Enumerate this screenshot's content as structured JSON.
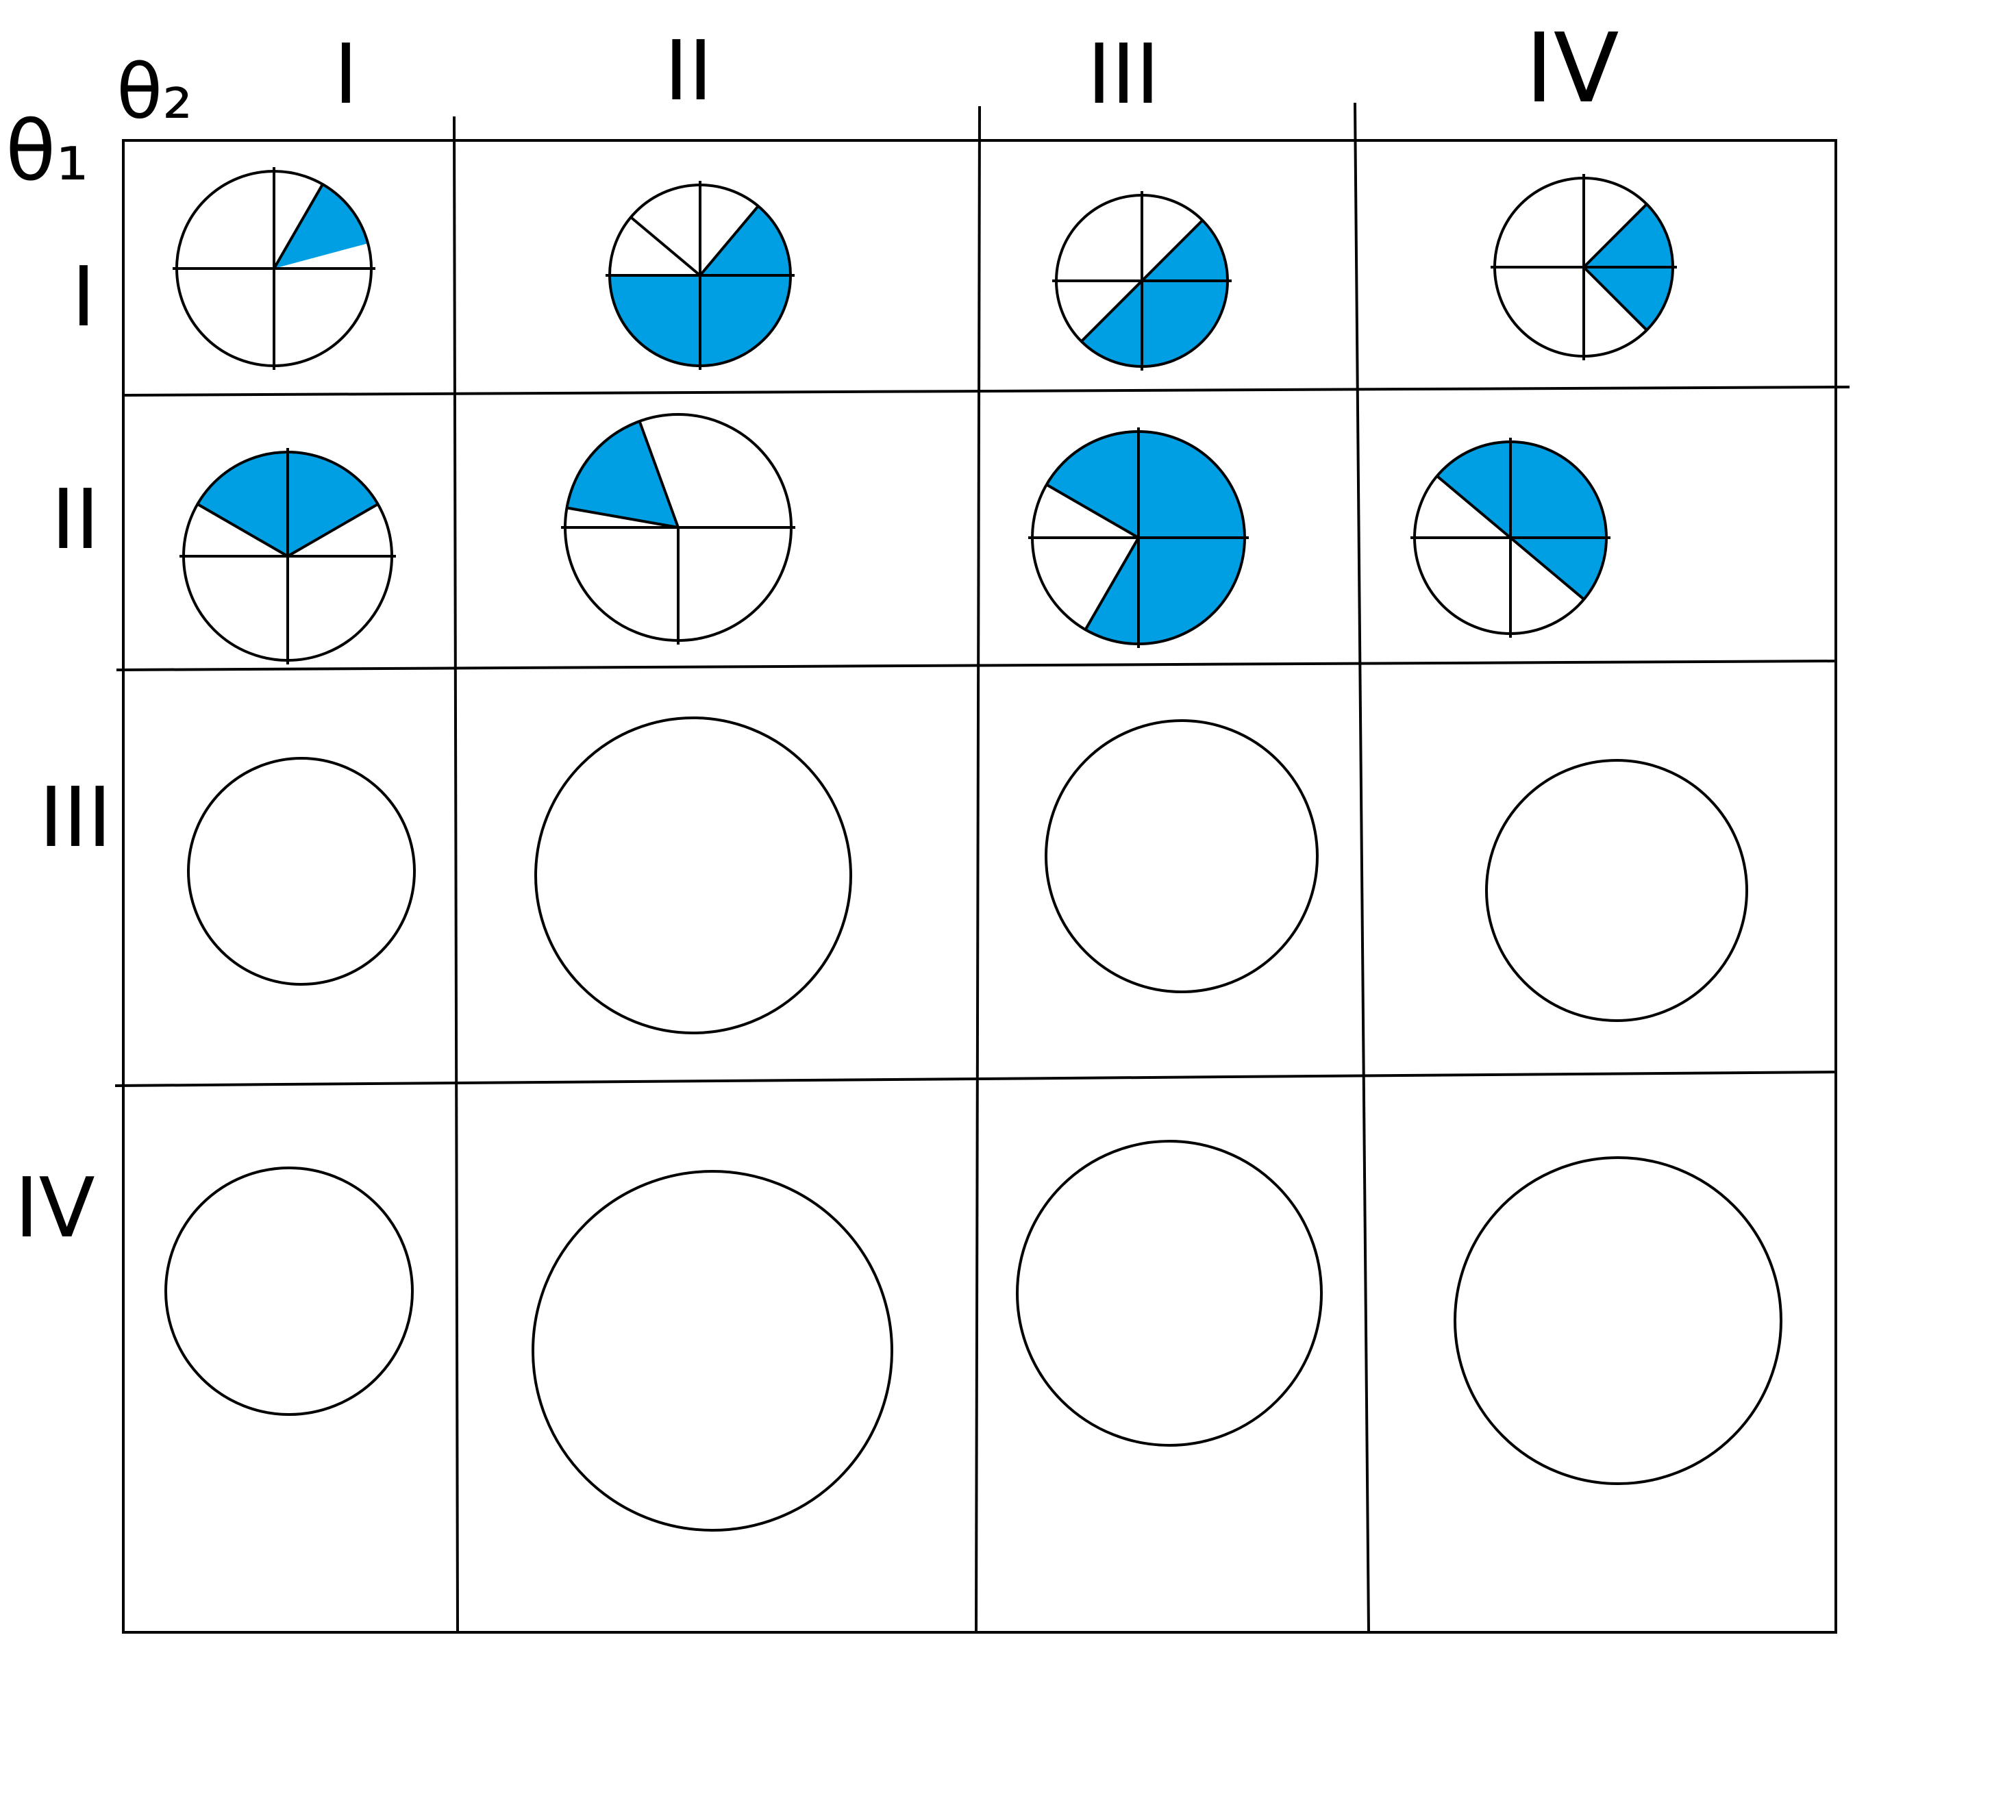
{
  "axes": {
    "row_axis_label": "θ₁",
    "col_axis_label": "θ₂"
  },
  "col_headers": [
    "I",
    "II",
    "III",
    "IV"
  ],
  "row_headers": [
    "I",
    "II",
    "III",
    "IV"
  ],
  "colors": {
    "fill": "#009fe3",
    "line": "#000000",
    "background": "#ffffff"
  },
  "cells": [
    {
      "row": "I",
      "col": "I",
      "spokes_deg": [
        0,
        60,
        90,
        180,
        270
      ],
      "shaded_sectors": [
        [
          15,
          60
        ]
      ]
    },
    {
      "row": "I",
      "col": "II",
      "spokes_deg": [
        0,
        50,
        90,
        140,
        180,
        270
      ],
      "shaded_sectors": [
        [
          180,
          360
        ],
        [
          0,
          50
        ]
      ]
    },
    {
      "row": "I",
      "col": "III",
      "spokes_deg": [
        0,
        45,
        90,
        180,
        225,
        270
      ],
      "shaded_sectors": [
        [
          225,
          360
        ],
        [
          0,
          45
        ]
      ]
    },
    {
      "row": "I",
      "col": "IV",
      "spokes_deg": [
        0,
        45,
        90,
        180,
        270,
        315
      ],
      "shaded_sectors": [
        [
          315,
          360
        ],
        [
          0,
          45
        ]
      ]
    },
    {
      "row": "II",
      "col": "I",
      "spokes_deg": [
        0,
        30,
        90,
        150,
        180,
        270
      ],
      "shaded_sectors": [
        [
          30,
          150
        ]
      ]
    },
    {
      "row": "II",
      "col": "II",
      "spokes_deg": [
        0,
        110,
        170,
        180,
        270
      ],
      "shaded_sectors": [
        [
          110,
          170
        ]
      ]
    },
    {
      "row": "II",
      "col": "III",
      "spokes_deg": [
        0,
        90,
        150,
        180,
        240,
        270
      ],
      "shaded_sectors": [
        [
          240,
          360
        ],
        [
          0,
          150
        ]
      ]
    },
    {
      "row": "II",
      "col": "IV",
      "spokes_deg": [
        0,
        90,
        140,
        180,
        270,
        320
      ],
      "shaded_sectors": [
        [
          320,
          360
        ],
        [
          0,
          140
        ]
      ]
    },
    {
      "row": "III",
      "col": "I",
      "spokes_deg": [],
      "shaded_sectors": []
    },
    {
      "row": "III",
      "col": "II",
      "spokes_deg": [],
      "shaded_sectors": []
    },
    {
      "row": "III",
      "col": "III",
      "spokes_deg": [],
      "shaded_sectors": []
    },
    {
      "row": "III",
      "col": "IV",
      "spokes_deg": [],
      "shaded_sectors": []
    },
    {
      "row": "IV",
      "col": "I",
      "spokes_deg": [],
      "shaded_sectors": []
    },
    {
      "row": "IV",
      "col": "II",
      "spokes_deg": [],
      "shaded_sectors": []
    },
    {
      "row": "IV",
      "col": "III",
      "spokes_deg": [],
      "shaded_sectors": []
    },
    {
      "row": "IV",
      "col": "IV",
      "spokes_deg": [],
      "shaded_sectors": []
    }
  ]
}
